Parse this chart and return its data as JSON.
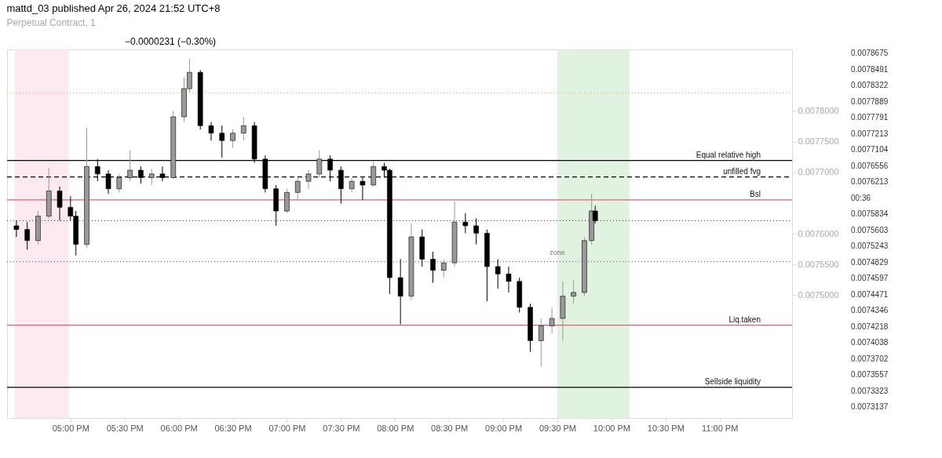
{
  "chart_data": {
    "type": "candlestick",
    "title": "mattd_03 published Apr 26, 2024 21:52 UTC+8",
    "subtitle": "Perpetual Contract, 1",
    "x": [
      "2024-04-26T16:30",
      "2024-04-26T16:36",
      "2024-04-26T16:42",
      "2024-04-26T16:48",
      "2024-04-26T16:54",
      "2024-04-26T17:00",
      "2024-04-26T17:03",
      "2024-04-26T17:09",
      "2024-04-26T17:15",
      "2024-04-26T17:21",
      "2024-04-26T17:27",
      "2024-04-26T17:33",
      "2024-04-26T17:39",
      "2024-04-26T17:45",
      "2024-04-26T17:51",
      "2024-04-26T17:57",
      "2024-04-26T18:03",
      "2024-04-26T18:06",
      "2024-04-26T18:12",
      "2024-04-26T18:18",
      "2024-04-26T18:24",
      "2024-04-26T18:30",
      "2024-04-26T18:36",
      "2024-04-26T18:42",
      "2024-04-26T18:48",
      "2024-04-26T18:54",
      "2024-04-26T19:00",
      "2024-04-26T19:06",
      "2024-04-26T19:12",
      "2024-04-26T19:18",
      "2024-04-26T19:24",
      "2024-04-26T19:30",
      "2024-04-26T19:36",
      "2024-04-26T19:42",
      "2024-04-26T19:48",
      "2024-04-26T19:54",
      "2024-04-26T19:57",
      "2024-04-26T20:03",
      "2024-04-26T20:09",
      "2024-04-26T20:15",
      "2024-04-26T20:21",
      "2024-04-26T20:27",
      "2024-04-26T20:33",
      "2024-04-26T20:39",
      "2024-04-26T20:45",
      "2024-04-26T20:51",
      "2024-04-26T20:57",
      "2024-04-26T21:03",
      "2024-04-26T21:09",
      "2024-04-26T21:15",
      "2024-04-26T21:21",
      "2024-04-26T21:27",
      "2024-04-26T21:33",
      "2024-04-26T21:39",
      "2024-04-26T21:45",
      "2024-04-26T21:49",
      "2024-04-26T21:51"
    ],
    "ohlc": [
      [
        0.0076129,
        0.0076213,
        0.0075948,
        0.0076069
      ],
      [
        0.0076069,
        0.0076189,
        0.0075743,
        0.0075888
      ],
      [
        0.0075888,
        0.007637,
        0.0075827,
        0.0076286
      ],
      [
        0.0076286,
        0.007707,
        0.007625,
        0.0076696
      ],
      [
        0.0076696,
        0.0076768,
        0.0076213,
        0.007643
      ],
      [
        0.007643,
        0.0076611,
        0.0076213,
        0.0076286
      ],
      [
        0.0076286,
        0.007637,
        0.0075646,
        0.0075827
      ],
      [
        0.0075827,
        0.0077722,
        0.0075767,
        0.0077094
      ],
      [
        0.0077094,
        0.0077215,
        0.0076853,
        0.0076973
      ],
      [
        0.0076973,
        0.0077034,
        0.0076648,
        0.0076732
      ],
      [
        0.0076732,
        0.0076973,
        0.0076672,
        0.0076913
      ],
      [
        0.0076913,
        0.007736,
        0.0076853,
        0.0077034
      ],
      [
        0.0077034,
        0.0077094,
        0.0076817,
        0.0076913
      ],
      [
        0.0076913,
        0.0077058,
        0.0076792,
        0.0076973
      ],
      [
        0.0076973,
        0.0077094,
        0.0076853,
        0.0076913
      ],
      [
        0.0076913,
        0.0077999,
        0.0076889,
        0.0077903
      ],
      [
        0.0077903,
        0.0078542,
        0.0077818,
        0.0078361
      ],
      [
        0.0078361,
        0.0078844,
        0.0078301,
        0.0078627
      ],
      [
        0.0078627,
        0.0078663,
        0.0077697,
        0.0077758
      ],
      [
        0.0077758,
        0.0077818,
        0.0077516,
        0.0077637
      ],
      [
        0.0077637,
        0.0077758,
        0.0077239,
        0.0077516
      ],
      [
        0.0077516,
        0.0077697,
        0.0077396,
        0.0077637
      ],
      [
        0.0077637,
        0.0077903,
        0.0077516,
        0.0077758
      ],
      [
        0.0077758,
        0.0077818,
        0.0077154,
        0.0077215
      ],
      [
        0.0077215,
        0.0077275,
        0.0076672,
        0.0076732
      ],
      [
        0.0076732,
        0.0076792,
        0.0076129,
        0.007637
      ],
      [
        0.007637,
        0.0076732,
        0.0076334,
        0.0076672
      ],
      [
        0.0076672,
        0.0076913,
        0.0076551,
        0.0076853
      ],
      [
        0.0076853,
        0.0077034,
        0.0076732,
        0.0076973
      ],
      [
        0.0076973,
        0.007736,
        0.0076913,
        0.0077215
      ],
      [
        0.0077215,
        0.0077275,
        0.0076853,
        0.0077034
      ],
      [
        0.0077034,
        0.0077094,
        0.0076491,
        0.0076732
      ],
      [
        0.0076732,
        0.0076913,
        0.0076672,
        0.0076853
      ],
      [
        0.0076853,
        0.0076913,
        0.0076551,
        0.0076792
      ],
      [
        0.0076792,
        0.0077179,
        0.0076768,
        0.0077094
      ],
      [
        0.0077094,
        0.0077154,
        0.0076913,
        0.0077034
      ],
      [
        0.0077034,
        0.0077058,
        0.0075019,
        0.0075284
      ],
      [
        0.0075284,
        0.0075586,
        0.0074524,
        0.0074983
      ],
      [
        0.0074983,
        0.0076165,
        0.0074922,
        0.0075948
      ],
      [
        0.0075948,
        0.0076069,
        0.0075465,
        0.0075586
      ],
      [
        0.0075586,
        0.0075707,
        0.00752,
        0.0075405
      ],
      [
        0.0075405,
        0.0075586,
        0.0075284,
        0.0075526
      ],
      [
        0.0075526,
        0.0076527,
        0.0075465,
        0.0076189
      ],
      [
        0.0076189,
        0.0076334,
        0.0076008,
        0.0076129
      ],
      [
        0.0076129,
        0.007625,
        0.0075827,
        0.0076008
      ],
      [
        0.0076008,
        0.0076069,
        0.0074898,
        0.0075465
      ],
      [
        0.0075465,
        0.0075586,
        0.0075103,
        0.0075345
      ],
      [
        0.0075345,
        0.0075465,
        0.0075043,
        0.0075224
      ],
      [
        0.0075224,
        0.0075284,
        0.0074717,
        0.0074802
      ],
      [
        0.0074802,
        0.0074862,
        0.0074078,
        0.0074259
      ],
      [
        0.0074259,
        0.0074621,
        0.0073836,
        0.00745
      ],
      [
        0.00745,
        0.0074802,
        0.0074379,
        0.0074621
      ],
      [
        0.0074621,
        0.0075224,
        0.0074259,
        0.0074983
      ],
      [
        0.0074983,
        0.0075248,
        0.0074862,
        0.0075043
      ],
      [
        0.0075043,
        0.0075948,
        0.0074983,
        0.0075888
      ],
      [
        0.0075888,
        0.0076648,
        0.0075827,
        0.007637
      ],
      [
        0.007637,
        0.0076455,
        0.0076165,
        0.0076213
      ]
    ],
    "colors": [
      "#000000",
      "#000000",
      "#999999",
      "#999999",
      "#000000",
      "#000000",
      "#000000",
      "#999999",
      "#000000",
      "#000000",
      "#999999",
      "#999999",
      "#000000",
      "#999999",
      "#000000",
      "#999999",
      "#999999",
      "#999999",
      "#000000",
      "#000000",
      "#000000",
      "#999999",
      "#999999",
      "#000000",
      "#000000",
      "#000000",
      "#999999",
      "#999999",
      "#999999",
      "#999999",
      "#000000",
      "#000000",
      "#999999",
      "#000000",
      "#999999",
      "#000000",
      "#000000",
      "#000000",
      "#999999",
      "#000000",
      "#000000",
      "#999999",
      "#999999",
      "#000000",
      "#000000",
      "#000000",
      "#000000",
      "#000000",
      "#000000",
      "#000000",
      "#999999",
      "#999999",
      "#999999",
      "#999999",
      "#999999",
      "#999999",
      "#000000"
    ],
    "xlim": [
      "2024-04-26T16:27",
      "2024-04-26T23:38"
    ],
    "xticks": [
      {
        "value": "2024-04-26T17:00",
        "label": "05:00 PM"
      },
      {
        "value": "2024-04-26T17:30",
        "label": "05:30 PM"
      },
      {
        "value": "2024-04-26T18:00",
        "label": "06:00 PM"
      },
      {
        "value": "2024-04-26T18:30",
        "label": "06:30 PM"
      },
      {
        "value": "2024-04-26T19:00",
        "label": "07:00 PM"
      },
      {
        "value": "2024-04-26T19:30",
        "label": "07:30 PM"
      },
      {
        "value": "2024-04-26T20:00",
        "label": "08:00 PM"
      },
      {
        "value": "2024-04-26T20:30",
        "label": "08:30 PM"
      },
      {
        "value": "2024-04-26T21:00",
        "label": "09:00 PM"
      },
      {
        "value": "2024-04-26T21:30",
        "label": "09:30 PM"
      },
      {
        "value": "2024-04-26T22:00",
        "label": "10:00 PM"
      },
      {
        "value": "2024-04-26T22:30",
        "label": "10:30 PM"
      },
      {
        "value": "2024-04-26T23:00",
        "label": "11:00 PM"
      }
    ],
    "ylim": [
      0.0073,
      0.0079
    ],
    "yticks": [
      {
        "value": 0.0078,
        "label": "0.0078000"
      },
      {
        "value": 0.00775,
        "label": "0.0077500"
      },
      {
        "value": 0.0077,
        "label": "0.0077000"
      },
      {
        "value": 0.0076,
        "label": "0.0076000"
      },
      {
        "value": 0.00755,
        "label": "0.0075500"
      },
      {
        "value": 0.0075,
        "label": "0.0075000"
      }
    ],
    "ref_lines": [
      {
        "axis": "y",
        "value": 0.0078289,
        "color": "#f5b041",
        "line_style": "dotted"
      },
      {
        "axis": "y",
        "value": 0.0077191,
        "label": "Equal relative high",
        "color": "#000000",
        "line_style": "solid"
      },
      {
        "axis": "y",
        "value": 0.0076925,
        "label": "unfilled fvg",
        "color": "#000000",
        "line_style": "dashed"
      },
      {
        "axis": "y",
        "value": 0.0076551,
        "label": "Bsl",
        "color": "#e06070",
        "line_style": "solid"
      },
      {
        "axis": "y",
        "value": 0.0076213,
        "color": "#555555",
        "line_style": "dotted"
      },
      {
        "axis": "y",
        "value": 0.0075546,
        "color": "#777777",
        "line_style": "dotted"
      },
      {
        "axis": "y",
        "value": 0.0074512,
        "label": "Liq.taken",
        "color": "#e06070",
        "line_style": "solid"
      },
      {
        "axis": "y",
        "value": 0.0073499,
        "label": "Sellside liquidity",
        "color": "#000000",
        "line_style": "solid"
      }
    ],
    "bands": [
      {
        "axis": "x",
        "from": "2024-04-26T16:29",
        "to": "2024-04-26T16:59",
        "color": "#fce4ec"
      },
      {
        "axis": "x",
        "from": "2024-04-26T21:30",
        "to": "2024-04-26T22:10",
        "label": "zone",
        "color": "#d8efd8"
      }
    ],
    "annotations": [
      "−0.0000231 (−0.30%)",
      "0.0078675",
      "0.0078491",
      "0.0078322",
      "0.0077889",
      "0.0077791",
      "0.0077213",
      "0.0077104",
      "0.0076556",
      "0.0076213",
      "00:36",
      "0.0075834",
      "0.0075603",
      "0.0075243",
      "0.0074829",
      "0.0074597",
      "0.0074471",
      "0.0074346",
      "0.0074218",
      "0.0074038",
      "0.0073702",
      "0.0073557",
      "0.0073323",
      "0.0073137"
    ]
  }
}
